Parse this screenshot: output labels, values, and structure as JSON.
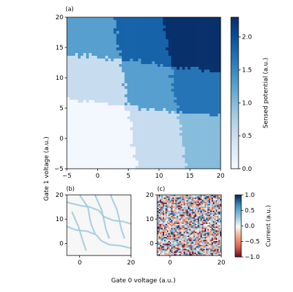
{
  "panel_labels": {
    "a": "(a)",
    "b": "(b)",
    "c": "(c)"
  },
  "shared_axes": {
    "xlabel": "Gate 0 voltage (a.u.)",
    "ylabel": "Gate 1 voltage (a.u.)"
  },
  "colorbars": {
    "a": {
      "label": "Sensed potential (a.u.)",
      "ticks": [
        "0.0",
        "0.5",
        "1.0",
        "1.5",
        "2.0"
      ]
    },
    "bc": {
      "label": "Current (a.u.)",
      "ticks": [
        "−1.0",
        "−0.5",
        "0.0",
        "0.5",
        "1.0"
      ]
    }
  },
  "chart_data": [
    {
      "panel": "a",
      "type": "heatmap",
      "xlim": [
        -5,
        20
      ],
      "ylim": [
        -5,
        20
      ],
      "xticks": [
        "−5",
        "0",
        "5",
        "10",
        "15",
        "20"
      ],
      "yticks": [
        "−5",
        "0",
        "5",
        "10",
        "15",
        "20"
      ],
      "x_breaks": [
        -5,
        4.5,
        12.5,
        20
      ],
      "y_breaks": [
        -5,
        5,
        12.5,
        20
      ],
      "values": [
        [
          0.05,
          0.55,
          1.0
        ],
        [
          0.55,
          1.3,
          1.7
        ],
        [
          1.3,
          1.85,
          2.3
        ]
      ],
      "vmin": 0,
      "vmax": 2.3,
      "colormap": [
        "#f7fbff",
        "#deebf7",
        "#c6dbef",
        "#9ecae1",
        "#6baed6",
        "#4292c6",
        "#2171b5",
        "#08519c",
        "#08306b"
      ]
    },
    {
      "panel": "b",
      "type": "line",
      "xlim": [
        -5,
        20
      ],
      "ylim": [
        -5,
        20
      ],
      "xticks": [
        "0",
        "20"
      ],
      "yticks": [
        "0",
        "10",
        "20"
      ],
      "series": [
        {
          "x": [
            -5,
            0.5,
            4,
            7.5,
            9.5,
            13,
            17,
            20
          ],
          "y": [
            17,
            15.5,
            15,
            13.5,
            11,
            9.5,
            9,
            8
          ]
        },
        {
          "x": [
            -5,
            -1.5,
            3,
            6.5,
            8.5,
            11.5,
            16,
            20
          ],
          "y": [
            7,
            5.5,
            5,
            3.5,
            1,
            -0.5,
            -1,
            -2
          ]
        },
        {
          "x": [
            0,
            1.2,
            3.2,
            4,
            4.6,
            6
          ],
          "y": [
            20,
            18,
            15,
            10,
            7.5,
            4
          ]
        },
        {
          "x": [
            6,
            7,
            8.5,
            9.5,
            10.2,
            11.5
          ],
          "y": [
            20,
            17.5,
            14,
            9.5,
            6,
            2
          ]
        },
        {
          "x": [
            12,
            13,
            14.5,
            15.5,
            16.2,
            17.5
          ],
          "y": [
            20,
            17.5,
            14,
            9.5,
            6,
            2
          ]
        },
        {
          "x": [
            -3,
            -2,
            -0.5,
            0.5,
            1.2,
            2.5
          ],
          "y": [
            13,
            10.5,
            7,
            3.5,
            1,
            -3
          ]
        }
      ],
      "color": "#9ecae1"
    },
    {
      "panel": "c",
      "type": "heatmap",
      "xlim": [
        -5,
        20
      ],
      "ylim": [
        -5,
        20
      ],
      "xticks": [
        "0",
        "20"
      ],
      "yticks": [
        "0",
        "10",
        "20"
      ],
      "description_values": "random noise in [-1, 1]",
      "vmin": -1,
      "vmax": 1,
      "colormap": [
        "#67001f",
        "#d6604d",
        "#f4a582",
        "#f7f7f7",
        "#92c5de",
        "#4393c3",
        "#053061"
      ]
    }
  ]
}
